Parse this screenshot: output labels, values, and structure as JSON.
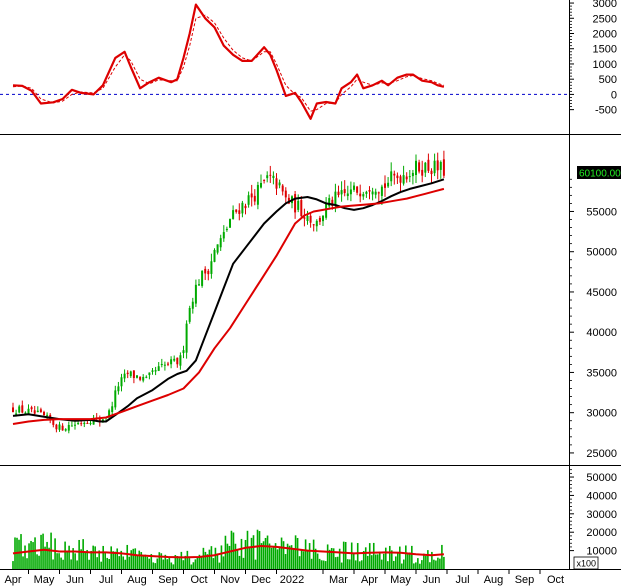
{
  "chart_data": [
    {
      "type": "line",
      "panel": "oscillator",
      "title": "",
      "ylim": [
        -1300,
        3100
      ],
      "yticks": [
        -500,
        0,
        500,
        1000,
        1500,
        2000,
        2500,
        3000
      ],
      "ytick_labels": [
        "-500",
        "0",
        "500",
        "1000",
        "1500",
        "2000",
        "2500",
        "3000"
      ],
      "zero_line": "dashed-blue",
      "series": [
        {
          "color": "#dd0000",
          "style": "solid",
          "points": [
            [
              0,
              300
            ],
            [
              0.3,
              280
            ],
            [
              0.6,
              120
            ],
            [
              0.9,
              -300
            ],
            [
              1.3,
              -260
            ],
            [
              1.6,
              -150
            ],
            [
              1.9,
              150
            ],
            [
              2.2,
              50
            ],
            [
              2.6,
              0
            ],
            [
              2.9,
              300
            ],
            [
              3.3,
              1200
            ],
            [
              3.6,
              1400
            ],
            [
              3.8,
              900
            ],
            [
              4.1,
              200
            ],
            [
              4.4,
              400
            ],
            [
              4.7,
              550
            ],
            [
              5.1,
              400
            ],
            [
              5.3,
              500
            ],
            [
              5.5,
              1200
            ],
            [
              5.7,
              2000
            ],
            [
              5.9,
              2950
            ],
            [
              6.2,
              2500
            ],
            [
              6.5,
              2200
            ],
            [
              6.8,
              1600
            ],
            [
              7.1,
              1300
            ],
            [
              7.4,
              1100
            ],
            [
              7.7,
              1100
            ],
            [
              8.1,
              1550
            ],
            [
              8.3,
              1300
            ],
            [
              8.5,
              800
            ],
            [
              8.8,
              -50
            ],
            [
              9.1,
              50
            ],
            [
              9.3,
              -250
            ],
            [
              9.6,
              -800
            ],
            [
              9.8,
              -300
            ],
            [
              10.1,
              -250
            ],
            [
              10.4,
              -300
            ],
            [
              10.6,
              200
            ],
            [
              10.9,
              400
            ],
            [
              11.1,
              650
            ],
            [
              11.3,
              200
            ],
            [
              11.6,
              300
            ],
            [
              11.9,
              450
            ],
            [
              12.1,
              300
            ],
            [
              12.4,
              550
            ],
            [
              12.7,
              650
            ],
            [
              12.9,
              650
            ],
            [
              13.2,
              450
            ],
            [
              13.5,
              400
            ],
            [
              13.7,
              300
            ],
            [
              13.9,
              250
            ]
          ]
        },
        {
          "color": "#dd0000",
          "style": "dashed",
          "points": [
            [
              0,
              250
            ],
            [
              0.3,
              280
            ],
            [
              0.6,
              200
            ],
            [
              0.9,
              -150
            ],
            [
              1.3,
              -280
            ],
            [
              1.6,
              -220
            ],
            [
              1.9,
              0
            ],
            [
              2.2,
              80
            ],
            [
              2.6,
              50
            ],
            [
              2.9,
              200
            ],
            [
              3.3,
              900
            ],
            [
              3.6,
              1300
            ],
            [
              3.8,
              1100
            ],
            [
              4.1,
              500
            ],
            [
              4.4,
              350
            ],
            [
              4.7,
              480
            ],
            [
              5.1,
              450
            ],
            [
              5.3,
              450
            ],
            [
              5.5,
              900
            ],
            [
              5.7,
              1600
            ],
            [
              5.9,
              2500
            ],
            [
              6.2,
              2600
            ],
            [
              6.5,
              2350
            ],
            [
              6.8,
              1850
            ],
            [
              7.1,
              1450
            ],
            [
              7.4,
              1200
            ],
            [
              7.7,
              1100
            ],
            [
              8.1,
              1400
            ],
            [
              8.3,
              1400
            ],
            [
              8.5,
              1000
            ],
            [
              8.8,
              300
            ],
            [
              9.1,
              0
            ],
            [
              9.3,
              -100
            ],
            [
              9.6,
              -550
            ],
            [
              9.8,
              -500
            ],
            [
              10.1,
              -300
            ],
            [
              10.4,
              -280
            ],
            [
              10.6,
              0
            ],
            [
              10.9,
              250
            ],
            [
              11.1,
              500
            ],
            [
              11.3,
              400
            ],
            [
              11.6,
              300
            ],
            [
              11.9,
              380
            ],
            [
              12.1,
              350
            ],
            [
              12.4,
              450
            ],
            [
              12.7,
              580
            ],
            [
              12.9,
              620
            ],
            [
              13.2,
              520
            ],
            [
              13.5,
              450
            ],
            [
              13.7,
              360
            ],
            [
              13.9,
              300
            ]
          ]
        }
      ]
    },
    {
      "type": "candlestick",
      "panel": "price",
      "title": "",
      "ylim": [
        23500,
        64500
      ],
      "yticks": [
        25000,
        30000,
        35000,
        40000,
        45000,
        50000,
        55000
      ],
      "ytick_labels": [
        "25000",
        "30000",
        "35000",
        "40000",
        "45000",
        "50000",
        "55000"
      ],
      "last_price_label": "60100.00",
      "up_color": "#00aa00",
      "down_color": "#dd0000",
      "close_anchors": [
        [
          0,
          30500
        ],
        [
          0.5,
          30100
        ],
        [
          1.0,
          29500
        ],
        [
          1.5,
          28100
        ],
        [
          2.0,
          28600
        ],
        [
          2.5,
          29200
        ],
        [
          2.8,
          29000
        ],
        [
          3.1,
          30000
        ],
        [
          3.4,
          33500
        ],
        [
          3.7,
          34800
        ],
        [
          4.0,
          34500
        ],
        [
          4.3,
          34000
        ],
        [
          4.6,
          35200
        ],
        [
          5.0,
          36000
        ],
        [
          5.3,
          36300
        ],
        [
          5.45,
          36800
        ],
        [
          5.6,
          41500
        ],
        [
          5.8,
          44500
        ],
        [
          6.0,
          46500
        ],
        [
          6.3,
          48000
        ],
        [
          6.5,
          50000
        ],
        [
          6.8,
          52000
        ],
        [
          7.0,
          54000
        ],
        [
          7.3,
          55500
        ],
        [
          7.6,
          56500
        ],
        [
          7.9,
          57500
        ],
        [
          8.2,
          59000
        ],
        [
          8.5,
          58500
        ],
        [
          8.8,
          56500
        ],
        [
          9.2,
          55500
        ],
        [
          9.5,
          54500
        ],
        [
          9.8,
          53500
        ],
        [
          10.1,
          55500
        ],
        [
          10.4,
          56500
        ],
        [
          10.7,
          57000
        ],
        [
          11.0,
          57500
        ],
        [
          11.3,
          58000
        ],
        [
          11.6,
          58500
        ],
        [
          11.9,
          58000
        ],
        [
          12.2,
          59000
        ],
        [
          12.5,
          59500
        ],
        [
          12.8,
          60000
        ],
        [
          13.1,
          60500
        ],
        [
          13.5,
          60500
        ],
        [
          13.9,
          60100
        ]
      ],
      "series": [
        {
          "color": "#000000",
          "points": [
            [
              0,
              29600
            ],
            [
              0.5,
              29800
            ],
            [
              1.0,
              29500
            ],
            [
              1.5,
              29200
            ],
            [
              2.0,
              29000
            ],
            [
              2.5,
              29100
            ],
            [
              2.8,
              28900
            ],
            [
              3.0,
              28900
            ],
            [
              3.3,
              29700
            ],
            [
              3.7,
              30800
            ],
            [
              4.0,
              31800
            ],
            [
              4.5,
              32800
            ],
            [
              5.0,
              34200
            ],
            [
              5.3,
              34800
            ],
            [
              5.6,
              35200
            ],
            [
              5.9,
              36500
            ],
            [
              6.2,
              39500
            ],
            [
              6.5,
              42500
            ],
            [
              6.8,
              45500
            ],
            [
              7.1,
              48500
            ],
            [
              7.5,
              50500
            ],
            [
              7.8,
              52000
            ],
            [
              8.1,
              53500
            ],
            [
              8.5,
              55000
            ],
            [
              8.8,
              56000
            ],
            [
              9.1,
              56600
            ],
            [
              9.5,
              56800
            ],
            [
              9.8,
              56500
            ],
            [
              10.1,
              56000
            ],
            [
              10.4,
              55800
            ],
            [
              10.7,
              55400
            ],
            [
              11.0,
              55200
            ],
            [
              11.3,
              55400
            ],
            [
              11.6,
              55800
            ],
            [
              11.9,
              56300
            ],
            [
              12.2,
              56900
            ],
            [
              12.5,
              57400
            ],
            [
              12.8,
              57800
            ],
            [
              13.1,
              58100
            ],
            [
              13.5,
              58500
            ],
            [
              13.9,
              59000
            ]
          ]
        },
        {
          "color": "#dd0000",
          "points": [
            [
              0,
              28600
            ],
            [
              0.5,
              28900
            ],
            [
              1.0,
              29100
            ],
            [
              1.5,
              29200
            ],
            [
              2.0,
              29200
            ],
            [
              2.5,
              29200
            ],
            [
              3.0,
              29400
            ],
            [
              3.5,
              30100
            ],
            [
              4.0,
              30800
            ],
            [
              4.5,
              31500
            ],
            [
              5.0,
              32200
            ],
            [
              5.5,
              33000
            ],
            [
              6.0,
              35000
            ],
            [
              6.5,
              38000
            ],
            [
              7.0,
              40500
            ],
            [
              7.5,
              43500
            ],
            [
              8.0,
              46500
            ],
            [
              8.5,
              49500
            ],
            [
              8.8,
              51500
            ],
            [
              9.1,
              53500
            ],
            [
              9.4,
              54500
            ],
            [
              9.7,
              55000
            ],
            [
              10.0,
              55200
            ],
            [
              10.3,
              55400
            ],
            [
              10.6,
              55600
            ],
            [
              10.9,
              55700
            ],
            [
              11.2,
              55800
            ],
            [
              11.5,
              55900
            ],
            [
              11.8,
              56000
            ],
            [
              12.1,
              56200
            ],
            [
              12.4,
              56400
            ],
            [
              12.7,
              56600
            ],
            [
              13.0,
              56900
            ],
            [
              13.3,
              57200
            ],
            [
              13.6,
              57500
            ],
            [
              13.9,
              57800
            ]
          ]
        }
      ]
    },
    {
      "type": "bar",
      "panel": "volume",
      "title": "",
      "ylim": [
        0,
        56000
      ],
      "yticks": [
        10000,
        20000,
        30000,
        40000,
        50000
      ],
      "ytick_labels": [
        "10000",
        "20000",
        "30000",
        "40000",
        "50000"
      ],
      "unit_label": "x100",
      "bar_color": "#00aa00",
      "ma_color": "#dd0000",
      "volume_anchors": [
        [
          0,
          12000
        ],
        [
          0.5,
          15000
        ],
        [
          1.0,
          14000
        ],
        [
          1.5,
          11000
        ],
        [
          2.0,
          12000
        ],
        [
          2.5,
          9000
        ],
        [
          3.0,
          10000
        ],
        [
          3.5,
          9000
        ],
        [
          4.0,
          7000
        ],
        [
          4.5,
          6000
        ],
        [
          5.0,
          6000
        ],
        [
          5.5,
          6000
        ],
        [
          6.0,
          7000
        ],
        [
          6.5,
          8000
        ],
        [
          7.0,
          13000
        ],
        [
          7.5,
          13000
        ],
        [
          8.0,
          14000
        ],
        [
          8.5,
          13000
        ],
        [
          9.0,
          12000
        ],
        [
          9.5,
          10000
        ],
        [
          10.0,
          10000
        ],
        [
          10.5,
          10000
        ],
        [
          11.0,
          9000
        ],
        [
          11.5,
          9000
        ],
        [
          12.0,
          9000
        ],
        [
          12.5,
          8000
        ],
        [
          13.0,
          8000
        ],
        [
          13.5,
          8000
        ],
        [
          13.9,
          8500
        ]
      ],
      "ma_points": [
        [
          0,
          8500
        ],
        [
          0.5,
          9500
        ],
        [
          1.0,
          10500
        ],
        [
          1.5,
          9500
        ],
        [
          2.0,
          9500
        ],
        [
          2.5,
          9000
        ],
        [
          3.0,
          9000
        ],
        [
          3.5,
          8500
        ],
        [
          4.0,
          7500
        ],
        [
          4.5,
          7000
        ],
        [
          5.0,
          6500
        ],
        [
          5.5,
          6300
        ],
        [
          6.0,
          6500
        ],
        [
          6.5,
          7500
        ],
        [
          7.0,
          9500
        ],
        [
          7.5,
          11500
        ],
        [
          8.0,
          12500
        ],
        [
          8.5,
          12000
        ],
        [
          9.0,
          11000
        ],
        [
          9.5,
          10000
        ],
        [
          10.0,
          9500
        ],
        [
          10.5,
          9000
        ],
        [
          11.0,
          8500
        ],
        [
          11.5,
          8800
        ],
        [
          12.0,
          9000
        ],
        [
          12.5,
          8800
        ],
        [
          13.0,
          8000
        ],
        [
          13.5,
          7500
        ],
        [
          13.9,
          8000
        ]
      ]
    }
  ],
  "x_axis": {
    "labels": [
      "Apr",
      "May",
      "Jun",
      "Jul",
      "Aug",
      "Sep",
      "Oct",
      "Nov",
      "Dec",
      "2022",
      "Mar",
      "Apr",
      "May",
      "Jun",
      "Jul",
      "Aug",
      "Sep",
      "Oct"
    ],
    "positions": [
      0,
      1,
      2,
      3,
      4,
      5,
      6,
      7,
      8,
      9,
      10.5,
      11.5,
      12.5,
      13.5,
      14.5,
      15.5,
      16.5,
      17.5
    ]
  },
  "colors": {
    "up": "#00aa00",
    "down": "#dd0000",
    "ma_short": "#000000",
    "ma_long": "#dd0000",
    "zero_line": "#0000cc"
  }
}
